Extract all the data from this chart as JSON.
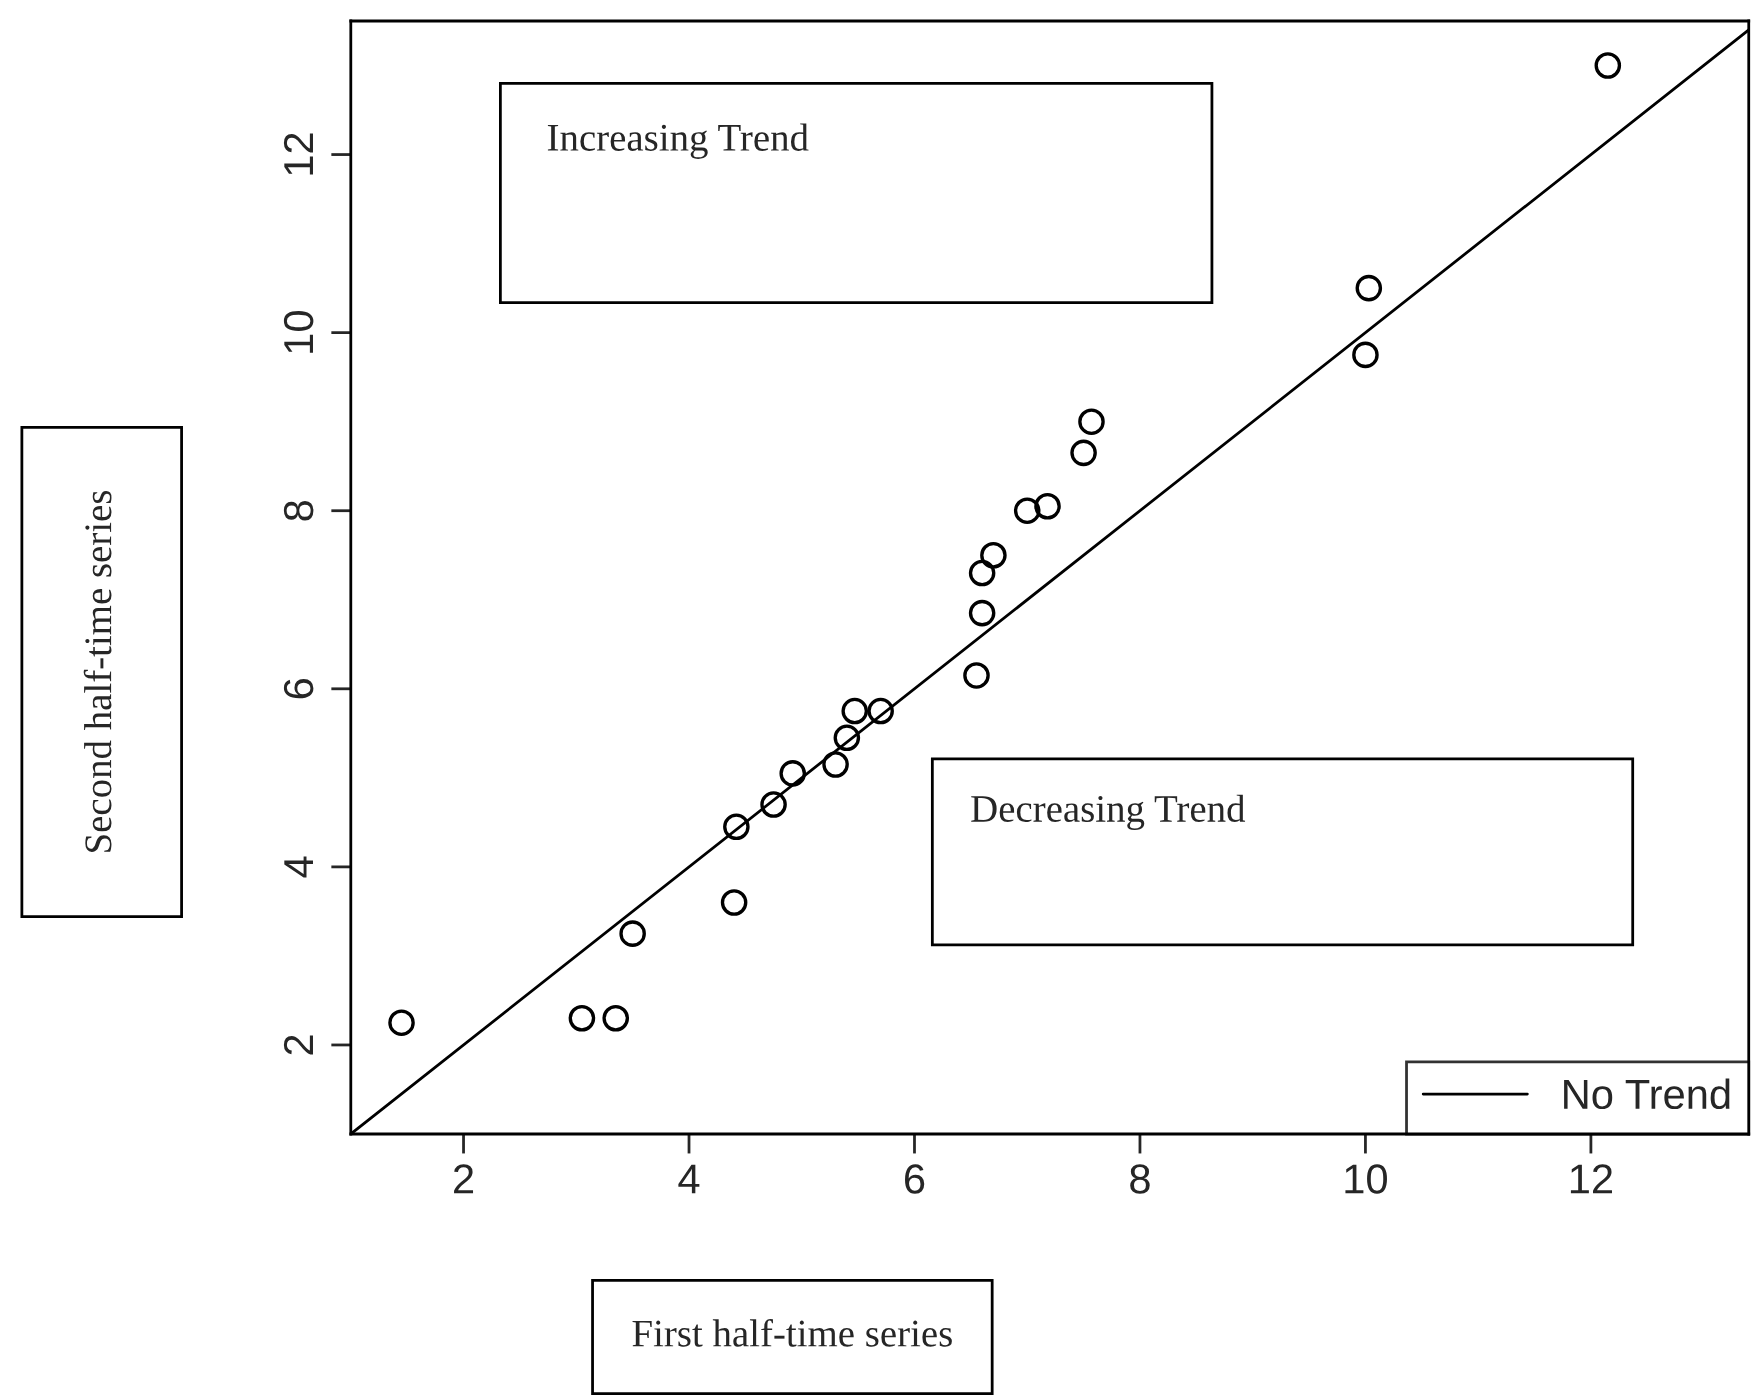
{
  "chart_data": {
    "type": "scatter",
    "xlabel": "First half-time series",
    "ylabel": "Second half-time series",
    "annotations": [
      "Increasing Trend",
      "Decreasing Trend"
    ],
    "series": [
      {
        "color": "#000000",
        "marker": "circle",
        "x": [
          1.45,
          3.05,
          3.35,
          3.5,
          4.4,
          4.42,
          4.75,
          4.92,
          5.3,
          5.4,
          5.47,
          5.7,
          6.55,
          6.6,
          6.6,
          6.7,
          7.0,
          7.18,
          7.5,
          7.57,
          10.0,
          10.03,
          12.15
        ],
        "values": [
          2.25,
          2.3,
          2.3,
          3.25,
          3.6,
          4.45,
          4.7,
          5.05,
          5.15,
          5.45,
          5.75,
          5.75,
          6.15,
          6.85,
          7.3,
          7.5,
          8.0,
          8.05,
          8.65,
          9.0,
          9.75,
          10.5,
          13.0
        ]
      },
      {
        "type": "line",
        "name": "No Trend",
        "color": "#000000",
        "line_style": "solid",
        "x": [
          1,
          13.4
        ],
        "values": [
          1,
          13.4
        ]
      }
    ],
    "xlim": [
      1,
      13.4
    ],
    "ylim": [
      1,
      13.5
    ],
    "xticks": [
      2,
      4,
      6,
      8,
      10,
      12
    ],
    "yticks": [
      2,
      4,
      6,
      8,
      10,
      12
    ],
    "grid": false,
    "legend": "bottom right"
  }
}
